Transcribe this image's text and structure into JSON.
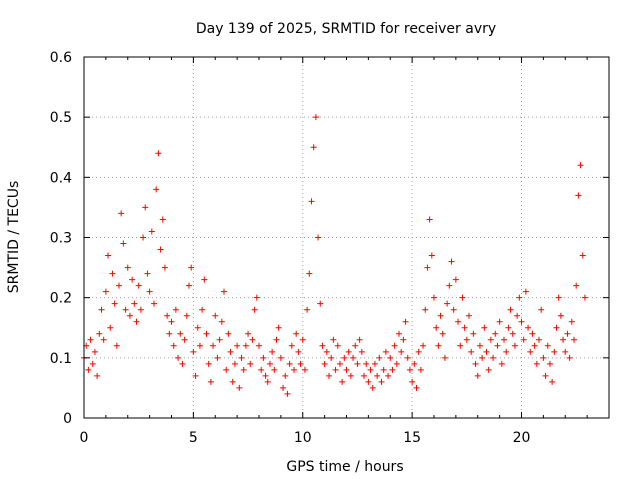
{
  "chart_data": {
    "type": "scatter",
    "title": "Day 139 of 2025, SRMTID for receiver avry",
    "xlabel": "GPS time / hours",
    "ylabel": "SRMTID / TECUs",
    "xlim": [
      0,
      24
    ],
    "ylim": [
      0,
      0.6
    ],
    "x_ticks": [
      0,
      5,
      10,
      15,
      20
    ],
    "x_tick_labels": [
      "0",
      "5",
      "10",
      "15",
      "20"
    ],
    "y_ticks": [
      0,
      0.1,
      0.2,
      0.3,
      0.4,
      0.5,
      0.6
    ],
    "y_tick_labels": [
      "0",
      "0.1",
      "0.2",
      "0.3",
      "0.4",
      "0.5",
      "0.6"
    ],
    "grid": true,
    "marker": "+",
    "color": "#ff0000",
    "series": [
      {
        "name": "SRMTID",
        "points": [
          [
            0.0,
            0.1
          ],
          [
            0.1,
            0.12
          ],
          [
            0.2,
            0.08
          ],
          [
            0.3,
            0.13
          ],
          [
            0.4,
            0.09
          ],
          [
            0.5,
            0.11
          ],
          [
            0.6,
            0.07
          ],
          [
            0.7,
            0.14
          ],
          [
            0.8,
            0.18
          ],
          [
            0.9,
            0.13
          ],
          [
            1.0,
            0.21
          ],
          [
            1.1,
            0.27
          ],
          [
            1.2,
            0.15
          ],
          [
            1.3,
            0.24
          ],
          [
            1.4,
            0.19
          ],
          [
            1.5,
            0.12
          ],
          [
            1.6,
            0.22
          ],
          [
            1.7,
            0.34
          ],
          [
            1.8,
            0.29
          ],
          [
            1.9,
            0.18
          ],
          [
            2.0,
            0.25
          ],
          [
            2.1,
            0.17
          ],
          [
            2.2,
            0.23
          ],
          [
            2.3,
            0.19
          ],
          [
            2.4,
            0.16
          ],
          [
            2.5,
            0.22
          ],
          [
            2.6,
            0.18
          ],
          [
            2.7,
            0.3
          ],
          [
            2.8,
            0.35
          ],
          [
            2.9,
            0.24
          ],
          [
            3.0,
            0.21
          ],
          [
            3.1,
            0.31
          ],
          [
            3.2,
            0.19
          ],
          [
            3.3,
            0.38
          ],
          [
            3.4,
            0.44
          ],
          [
            3.5,
            0.28
          ],
          [
            3.6,
            0.33
          ],
          [
            3.7,
            0.25
          ],
          [
            3.8,
            0.17
          ],
          [
            3.9,
            0.14
          ],
          [
            4.0,
            0.16
          ],
          [
            4.1,
            0.12
          ],
          [
            4.2,
            0.18
          ],
          [
            4.3,
            0.1
          ],
          [
            4.4,
            0.14
          ],
          [
            4.5,
            0.09
          ],
          [
            4.6,
            0.13
          ],
          [
            4.7,
            0.17
          ],
          [
            4.8,
            0.22
          ],
          [
            4.9,
            0.25
          ],
          [
            5.0,
            0.11
          ],
          [
            5.1,
            0.07
          ],
          [
            5.2,
            0.15
          ],
          [
            5.3,
            0.12
          ],
          [
            5.4,
            0.18
          ],
          [
            5.5,
            0.23
          ],
          [
            5.6,
            0.14
          ],
          [
            5.7,
            0.09
          ],
          [
            5.8,
            0.06
          ],
          [
            5.9,
            0.12
          ],
          [
            6.0,
            0.17
          ],
          [
            6.1,
            0.1
          ],
          [
            6.2,
            0.13
          ],
          [
            6.3,
            0.16
          ],
          [
            6.4,
            0.21
          ],
          [
            6.5,
            0.08
          ],
          [
            6.6,
            0.14
          ],
          [
            6.7,
            0.11
          ],
          [
            6.8,
            0.06
          ],
          [
            6.9,
            0.09
          ],
          [
            7.0,
            0.12
          ],
          [
            7.1,
            0.05
          ],
          [
            7.2,
            0.1
          ],
          [
            7.3,
            0.08
          ],
          [
            7.4,
            0.12
          ],
          [
            7.5,
            0.14
          ],
          [
            7.6,
            0.09
          ],
          [
            7.7,
            0.13
          ],
          [
            7.8,
            0.18
          ],
          [
            7.9,
            0.2
          ],
          [
            8.0,
            0.12
          ],
          [
            8.1,
            0.08
          ],
          [
            8.2,
            0.1
          ],
          [
            8.3,
            0.07
          ],
          [
            8.4,
            0.06
          ],
          [
            8.5,
            0.09
          ],
          [
            8.6,
            0.11
          ],
          [
            8.7,
            0.08
          ],
          [
            8.8,
            0.13
          ],
          [
            8.9,
            0.15
          ],
          [
            9.0,
            0.1
          ],
          [
            9.1,
            0.05
          ],
          [
            9.2,
            0.07
          ],
          [
            9.3,
            0.04
          ],
          [
            9.4,
            0.09
          ],
          [
            9.5,
            0.12
          ],
          [
            9.6,
            0.08
          ],
          [
            9.7,
            0.14
          ],
          [
            9.8,
            0.11
          ],
          [
            9.9,
            0.09
          ],
          [
            10.0,
            0.13
          ],
          [
            10.1,
            0.08
          ],
          [
            10.2,
            0.18
          ],
          [
            10.3,
            0.24
          ],
          [
            10.4,
            0.36
          ],
          [
            10.5,
            0.45
          ],
          [
            10.6,
            0.5
          ],
          [
            10.7,
            0.3
          ],
          [
            10.8,
            0.19
          ],
          [
            10.9,
            0.12
          ],
          [
            11.0,
            0.09
          ],
          [
            11.1,
            0.11
          ],
          [
            11.2,
            0.07
          ],
          [
            11.3,
            0.1
          ],
          [
            11.4,
            0.13
          ],
          [
            11.5,
            0.08
          ],
          [
            11.6,
            0.12
          ],
          [
            11.7,
            0.09
          ],
          [
            11.8,
            0.06
          ],
          [
            11.9,
            0.1
          ],
          [
            12.0,
            0.08
          ],
          [
            12.1,
            0.11
          ],
          [
            12.2,
            0.07
          ],
          [
            12.3,
            0.1
          ],
          [
            12.4,
            0.12
          ],
          [
            12.5,
            0.09
          ],
          [
            12.6,
            0.13
          ],
          [
            12.7,
            0.11
          ],
          [
            12.8,
            0.07
          ],
          [
            12.9,
            0.09
          ],
          [
            13.0,
            0.06
          ],
          [
            13.1,
            0.08
          ],
          [
            13.2,
            0.05
          ],
          [
            13.3,
            0.09
          ],
          [
            13.4,
            0.07
          ],
          [
            13.5,
            0.1
          ],
          [
            13.6,
            0.06
          ],
          [
            13.7,
            0.08
          ],
          [
            13.8,
            0.11
          ],
          [
            13.9,
            0.07
          ],
          [
            14.0,
            0.1
          ],
          [
            14.1,
            0.08
          ],
          [
            14.2,
            0.12
          ],
          [
            14.3,
            0.09
          ],
          [
            14.4,
            0.14
          ],
          [
            14.5,
            0.11
          ],
          [
            14.6,
            0.13
          ],
          [
            14.7,
            0.16
          ],
          [
            14.8,
            0.1
          ],
          [
            14.9,
            0.08
          ],
          [
            15.0,
            0.06
          ],
          [
            15.1,
            0.09
          ],
          [
            15.2,
            0.05
          ],
          [
            15.3,
            0.11
          ],
          [
            15.4,
            0.08
          ],
          [
            15.5,
            0.12
          ],
          [
            15.6,
            0.18
          ],
          [
            15.7,
            0.25
          ],
          [
            15.8,
            0.33
          ],
          [
            15.9,
            0.27
          ],
          [
            16.0,
            0.2
          ],
          [
            16.1,
            0.15
          ],
          [
            16.2,
            0.12
          ],
          [
            16.3,
            0.17
          ],
          [
            16.4,
            0.14
          ],
          [
            16.5,
            0.1
          ],
          [
            16.6,
            0.19
          ],
          [
            16.7,
            0.22
          ],
          [
            16.8,
            0.26
          ],
          [
            16.9,
            0.18
          ],
          [
            17.0,
            0.23
          ],
          [
            17.1,
            0.16
          ],
          [
            17.2,
            0.12
          ],
          [
            17.3,
            0.2
          ],
          [
            17.4,
            0.15
          ],
          [
            17.5,
            0.13
          ],
          [
            17.6,
            0.17
          ],
          [
            17.7,
            0.11
          ],
          [
            17.8,
            0.14
          ],
          [
            17.9,
            0.09
          ],
          [
            18.0,
            0.07
          ],
          [
            18.1,
            0.12
          ],
          [
            18.2,
            0.1
          ],
          [
            18.3,
            0.15
          ],
          [
            18.4,
            0.11
          ],
          [
            18.5,
            0.08
          ],
          [
            18.6,
            0.13
          ],
          [
            18.7,
            0.1
          ],
          [
            18.8,
            0.14
          ],
          [
            18.9,
            0.12
          ],
          [
            19.0,
            0.16
          ],
          [
            19.1,
            0.09
          ],
          [
            19.2,
            0.13
          ],
          [
            19.3,
            0.11
          ],
          [
            19.4,
            0.15
          ],
          [
            19.5,
            0.18
          ],
          [
            19.6,
            0.14
          ],
          [
            19.7,
            0.12
          ],
          [
            19.8,
            0.17
          ],
          [
            19.9,
            0.2
          ],
          [
            20.0,
            0.16
          ],
          [
            20.1,
            0.13
          ],
          [
            20.2,
            0.21
          ],
          [
            20.3,
            0.15
          ],
          [
            20.4,
            0.11
          ],
          [
            20.5,
            0.14
          ],
          [
            20.6,
            0.12
          ],
          [
            20.7,
            0.09
          ],
          [
            20.8,
            0.13
          ],
          [
            20.9,
            0.18
          ],
          [
            21.0,
            0.1
          ],
          [
            21.1,
            0.07
          ],
          [
            21.2,
            0.12
          ],
          [
            21.3,
            0.09
          ],
          [
            21.4,
            0.06
          ],
          [
            21.5,
            0.11
          ],
          [
            21.6,
            0.15
          ],
          [
            21.7,
            0.2
          ],
          [
            21.8,
            0.17
          ],
          [
            21.9,
            0.13
          ],
          [
            22.0,
            0.11
          ],
          [
            22.1,
            0.14
          ],
          [
            22.2,
            0.1
          ],
          [
            22.3,
            0.16
          ],
          [
            22.4,
            0.13
          ],
          [
            22.5,
            0.22
          ],
          [
            22.6,
            0.37
          ],
          [
            22.7,
            0.42
          ],
          [
            22.8,
            0.27
          ],
          [
            22.9,
            0.2
          ]
        ]
      }
    ]
  }
}
